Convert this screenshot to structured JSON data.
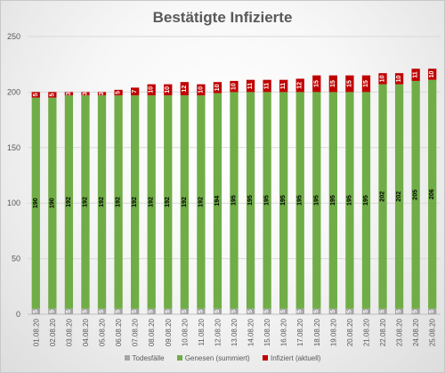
{
  "chart_data": {
    "type": "bar",
    "stacked": true,
    "title": "Bestätigte Infizierte",
    "xlabel": "",
    "ylabel": "",
    "ylim": [
      0,
      250
    ],
    "yticks": [
      0,
      50,
      100,
      150,
      200,
      250
    ],
    "grid": true,
    "legend_position": "bottom",
    "categories": [
      "01.08.20",
      "02.08.20",
      "03.08.20",
      "04.08.20",
      "05.08.20",
      "06.08.20",
      "07.08.20",
      "08.08.20",
      "09.08.20",
      "10.08.20",
      "11.08.20",
      "12.08.20",
      "13.08.20",
      "14.08.20",
      "15.08.20",
      "16.08.20",
      "17.08.20",
      "18.08.20",
      "19.08.20",
      "20.08.20",
      "21.08.20",
      "22.08.20",
      "23.08.20",
      "24.08.20",
      "25.08.20"
    ],
    "series": [
      {
        "name": "Todesfälle",
        "color": "#a5a5a5",
        "values": [
          5,
          5,
          5,
          5,
          5,
          5,
          5,
          5,
          5,
          5,
          5,
          5,
          5,
          5,
          5,
          5,
          5,
          5,
          5,
          5,
          5,
          5,
          5,
          5,
          5
        ]
      },
      {
        "name": "Genesen (summiert)",
        "color": "#70ad47",
        "values": [
          190,
          190,
          192,
          192,
          192,
          192,
          192,
          192,
          192,
          192,
          192,
          194,
          195,
          195,
          195,
          195,
          195,
          195,
          195,
          195,
          195,
          202,
          202,
          205,
          206
        ]
      },
      {
        "name": "Infiziert (aktuell)",
        "color": "#c00000",
        "values": [
          5,
          5,
          3,
          3,
          3,
          5,
          7,
          10,
          10,
          12,
          10,
          10,
          10,
          11,
          11,
          11,
          12,
          15,
          15,
          15,
          15,
          10,
          10,
          11,
          10
        ]
      }
    ]
  }
}
